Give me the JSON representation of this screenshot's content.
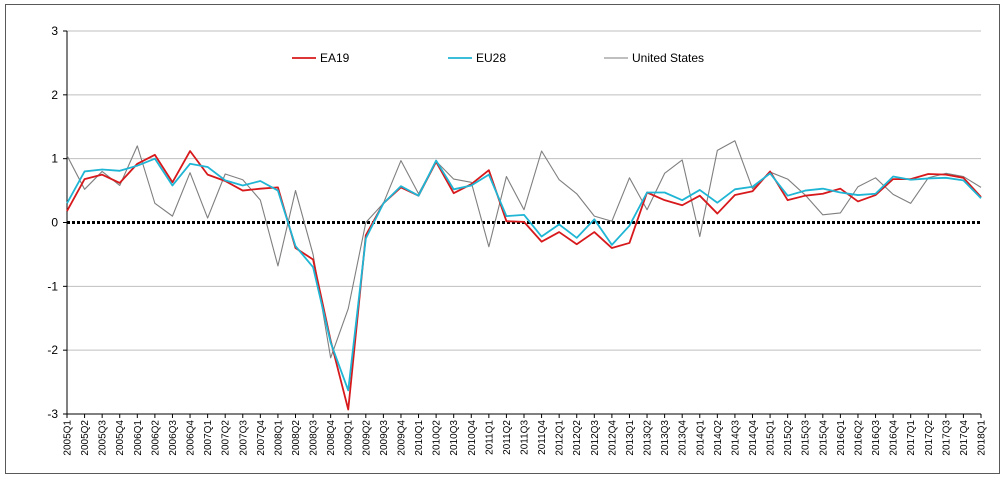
{
  "chart_data": {
    "type": "line",
    "title": "",
    "xlabel": "",
    "ylabel": "",
    "ylim": [
      -3,
      3
    ],
    "yticks": [
      -3,
      -2,
      -1,
      0,
      1,
      2,
      3
    ],
    "grid": true,
    "legend_position": "top-center",
    "categories": [
      "2005Q1",
      "2005Q2",
      "2005Q3",
      "2005Q4",
      "2006Q1",
      "2006Q2",
      "2006Q3",
      "2006Q4",
      "2007Q1",
      "2007Q2",
      "2007Q3",
      "2007Q4",
      "2008Q1",
      "2008Q2",
      "2008Q3",
      "2008Q4",
      "2009Q1",
      "2009Q2",
      "2009Q3",
      "2009Q4",
      "2010Q1",
      "2010Q2",
      "2010Q3",
      "2010Q4",
      "2011Q1",
      "2011Q2",
      "2011Q3",
      "2011Q4",
      "2012Q1",
      "2012Q2",
      "2012Q3",
      "2012Q4",
      "2013Q1",
      "2013Q2",
      "2013Q3",
      "2013Q4",
      "2014Q1",
      "2014Q2",
      "2014Q3",
      "2014Q4",
      "2015Q1",
      "2015Q2",
      "2015Q3",
      "2015Q4",
      "2016Q1",
      "2016Q2",
      "2016Q3",
      "2016Q4",
      "2017Q1",
      "2017Q2",
      "2017Q3",
      "2017Q4",
      "2018Q1"
    ],
    "x_tick_labels": [
      "2005Q1",
      "2005Q2",
      "2005Q3",
      "2005Q4",
      "2006Q1",
      "2006Q2",
      "2006Q3",
      "2006Q4",
      "2007Q1",
      "2007Q2",
      "2007Q3",
      "2007Q4",
      "2008Q1",
      "2008Q2",
      "2008Q3",
      "2008Q4",
      "2009Q1",
      "2009Q2",
      "2009Q3",
      "2009Q4",
      "2010Q1",
      "2010Q2",
      "2010Q3",
      "2010Q4",
      "2011Q1",
      "2011Q2",
      "2011Q3",
      "2011Q4",
      "2012Q1",
      "2012Q2",
      "2012Q3",
      "2012Q4",
      "2013Q1",
      "2013Q2",
      "2013Q3",
      "2013Q4",
      "2014Q1",
      "2014Q2",
      "2014Q3",
      "2014Q4",
      "2015Q1",
      "2015Q2",
      "2015Q3",
      "2015Q4",
      "2016Q1",
      "2016Q2",
      "2016Q3",
      "2016Q4",
      "2017Q1",
      "2017Q2",
      "2017Q3",
      "2017Q4",
      "2018Q1"
    ],
    "series": [
      {
        "name": "EA19",
        "color": "#d7191c",
        "values": [
          0.18,
          0.68,
          0.75,
          0.62,
          0.92,
          1.06,
          0.63,
          1.12,
          0.75,
          0.65,
          0.5,
          0.53,
          0.55,
          -0.4,
          -0.58,
          -1.85,
          -2.93,
          -0.2,
          0.3,
          0.55,
          0.42,
          0.95,
          0.46,
          0.6,
          0.82,
          0.02,
          0.01,
          -0.3,
          -0.15,
          -0.34,
          -0.15,
          -0.4,
          -0.32,
          0.47,
          0.35,
          0.27,
          0.42,
          0.14,
          0.43,
          0.49,
          0.8,
          0.35,
          0.42,
          0.45,
          0.53,
          0.33,
          0.43,
          0.68,
          0.68,
          0.76,
          0.75,
          0.7,
          0.4
        ]
      },
      {
        "name": "EU28",
        "color": "#1fb5d4",
        "values": [
          0.3,
          0.8,
          0.83,
          0.81,
          0.89,
          1.0,
          0.58,
          0.92,
          0.87,
          0.66,
          0.58,
          0.65,
          0.5,
          -0.37,
          -0.7,
          -1.88,
          -2.63,
          -0.25,
          0.3,
          0.57,
          0.42,
          0.97,
          0.52,
          0.58,
          0.75,
          0.1,
          0.12,
          -0.22,
          -0.03,
          -0.24,
          0.05,
          -0.35,
          -0.05,
          0.47,
          0.47,
          0.35,
          0.51,
          0.31,
          0.52,
          0.56,
          0.77,
          0.42,
          0.5,
          0.53,
          0.47,
          0.43,
          0.45,
          0.72,
          0.67,
          0.69,
          0.7,
          0.66,
          0.38
        ]
      },
      {
        "name": "United States",
        "color": "#7f7f7f",
        "values": [
          1.05,
          0.52,
          0.8,
          0.58,
          1.2,
          0.3,
          0.1,
          0.78,
          0.07,
          0.76,
          0.67,
          0.35,
          -0.68,
          0.5,
          -0.5,
          -2.12,
          -1.35,
          0.0,
          0.3,
          0.97,
          0.45,
          0.96,
          0.68,
          0.63,
          -0.38,
          0.72,
          0.2,
          1.12,
          0.67,
          0.45,
          0.1,
          0.02,
          0.7,
          0.2,
          0.77,
          0.98,
          -0.22,
          1.13,
          1.28,
          0.53,
          0.79,
          0.68,
          0.43,
          0.12,
          0.15,
          0.56,
          0.7,
          0.44,
          0.3,
          0.7,
          0.77,
          0.72,
          0.55
        ]
      }
    ]
  }
}
